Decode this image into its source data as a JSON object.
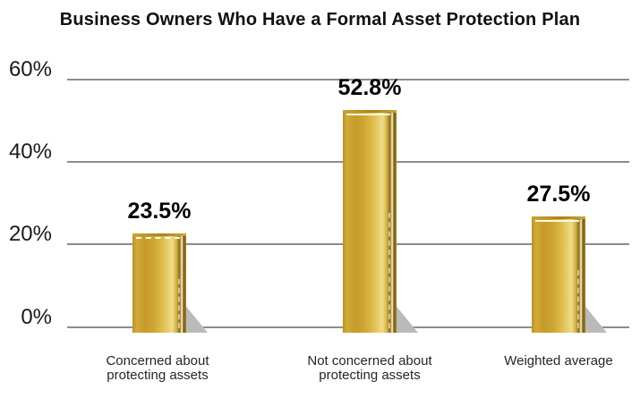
{
  "title": "Business Owners Who Have a Formal Asset Protection Plan",
  "chart_data": {
    "type": "bar",
    "title": "Business Owners Who Have a Formal Asset Protection Plan",
    "categories": [
      "Concerned about\nprotecting assets",
      "Not concerned about\nprotecting assets",
      "Weighted average"
    ],
    "values": [
      23.5,
      52.8,
      27.5
    ],
    "value_labels": [
      "23.5%",
      "52.8%",
      "27.5%"
    ],
    "xlabel": "",
    "ylabel": "",
    "ylim": [
      0,
      60
    ],
    "yticks": [
      0,
      20,
      40,
      60
    ],
    "ytick_labels": [
      "0%",
      "20%",
      "40%",
      "60%"
    ],
    "grid": "horizontal gridlines at each y tick",
    "legend": "none",
    "colors": {
      "bar_gold_light": "#eedd8a",
      "bar_gold_mid": "#d4ab33",
      "bar_gold_dark": "#8a6a16",
      "gridline": "#8c8c8c",
      "shadow": "#bababa",
      "text": "#111111"
    }
  }
}
